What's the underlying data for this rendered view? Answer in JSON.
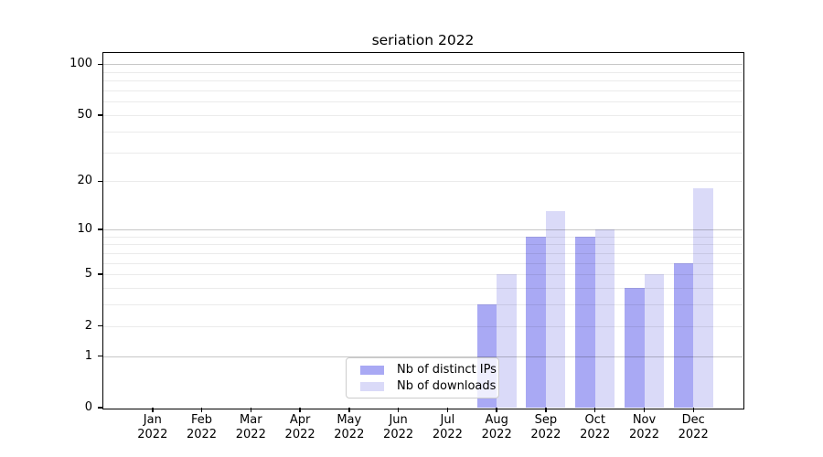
{
  "chart_data": {
    "type": "bar",
    "title": "seriation 2022",
    "categories": [
      {
        "month": "Jan",
        "year": "2022"
      },
      {
        "month": "Feb",
        "year": "2022"
      },
      {
        "month": "Mar",
        "year": "2022"
      },
      {
        "month": "Apr",
        "year": "2022"
      },
      {
        "month": "May",
        "year": "2022"
      },
      {
        "month": "Jun",
        "year": "2022"
      },
      {
        "month": "Jul",
        "year": "2022"
      },
      {
        "month": "Aug",
        "year": "2022"
      },
      {
        "month": "Sep",
        "year": "2022"
      },
      {
        "month": "Oct",
        "year": "2022"
      },
      {
        "month": "Nov",
        "year": "2022"
      },
      {
        "month": "Dec",
        "year": "2022"
      }
    ],
    "series": [
      {
        "name": "Nb of distinct IPs",
        "color": "#a9a9f4",
        "values": [
          0,
          0,
          0,
          0,
          0,
          0,
          0,
          3,
          9,
          9,
          4,
          6
        ]
      },
      {
        "name": "Nb of downloads",
        "color": "#dadaf8",
        "values": [
          0,
          0,
          0,
          0,
          0,
          0,
          0,
          5,
          13,
          10,
          5,
          18
        ]
      }
    ],
    "yscale": "log1p",
    "ylim": [
      0,
      117
    ],
    "yticks": [
      0,
      1,
      2,
      5,
      10,
      20,
      50,
      100
    ],
    "grid": "on",
    "grid_major_values": [
      1,
      10,
      100
    ],
    "grid_minor_values": [
      2,
      3,
      4,
      5,
      6,
      7,
      8,
      9,
      20,
      30,
      40,
      50,
      60,
      70,
      80,
      90
    ],
    "legend_position": "lower center inside",
    "xlabel": "",
    "ylabel": ""
  },
  "style": {
    "bar_dark": "#a9a9f4",
    "bar_light": "#dadaf8",
    "grid_major_color": "rgba(0,0,0,0.22)",
    "grid_minor_color": "rgba(0,0,0,0.08)",
    "legend_border": "#cccccc",
    "background": "#ffffff"
  }
}
